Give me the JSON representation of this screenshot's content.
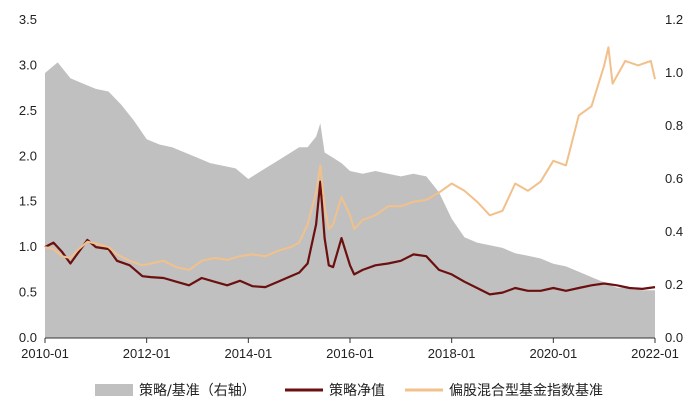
{
  "chart_data": {
    "type": "line",
    "title": "",
    "xlabel": "",
    "ylabel_left": "",
    "ylabel_right": "",
    "x_ticks": [
      "2010-01",
      "2012-01",
      "2014-01",
      "2016-01",
      "2018-01",
      "2020-01",
      "2022-01"
    ],
    "y_left_ticks": [
      "0.0",
      "0.5",
      "1.0",
      "1.5",
      "2.0",
      "2.5",
      "3.0",
      "3.5"
    ],
    "y_right_ticks": [
      "0.0",
      "0.2",
      "0.4",
      "0.6",
      "0.8",
      "1.0",
      "1.2"
    ],
    "y_left_range": [
      0,
      3.5
    ],
    "y_right_range": [
      0,
      1.2
    ],
    "x_range": [
      "2010-01",
      "2022-01"
    ],
    "legend_position": "bottom",
    "grid": false,
    "series": [
      {
        "name": "策略/基准（右轴）",
        "type": "area",
        "axis": "right",
        "color": "#c0c0c0",
        "points": [
          [
            "2010-01",
            1.0
          ],
          [
            "2010-04",
            1.04
          ],
          [
            "2010-07",
            0.98
          ],
          [
            "2010-10",
            0.96
          ],
          [
            "2011-01",
            0.94
          ],
          [
            "2011-04",
            0.93
          ],
          [
            "2011-07",
            0.88
          ],
          [
            "2011-10",
            0.82
          ],
          [
            "2012-01",
            0.75
          ],
          [
            "2012-04",
            0.73
          ],
          [
            "2012-07",
            0.72
          ],
          [
            "2012-10",
            0.7
          ],
          [
            "2013-01",
            0.68
          ],
          [
            "2013-04",
            0.66
          ],
          [
            "2013-07",
            0.65
          ],
          [
            "2013-10",
            0.64
          ],
          [
            "2014-01",
            0.6
          ],
          [
            "2014-04",
            0.63
          ],
          [
            "2014-07",
            0.66
          ],
          [
            "2014-10",
            0.69
          ],
          [
            "2015-01",
            0.72
          ],
          [
            "2015-03",
            0.72
          ],
          [
            "2015-05",
            0.76
          ],
          [
            "2015-06",
            0.81
          ],
          [
            "2015-07",
            0.7
          ],
          [
            "2015-09",
            0.68
          ],
          [
            "2015-11",
            0.66
          ],
          [
            "2016-01",
            0.63
          ],
          [
            "2016-04",
            0.62
          ],
          [
            "2016-07",
            0.63
          ],
          [
            "2016-10",
            0.62
          ],
          [
            "2017-01",
            0.61
          ],
          [
            "2017-04",
            0.62
          ],
          [
            "2017-07",
            0.61
          ],
          [
            "2017-10",
            0.55
          ],
          [
            "2018-01",
            0.45
          ],
          [
            "2018-04",
            0.38
          ],
          [
            "2018-07",
            0.36
          ],
          [
            "2018-10",
            0.35
          ],
          [
            "2019-01",
            0.34
          ],
          [
            "2019-04",
            0.32
          ],
          [
            "2019-07",
            0.31
          ],
          [
            "2019-10",
            0.3
          ],
          [
            "2020-01",
            0.28
          ],
          [
            "2020-04",
            0.27
          ],
          [
            "2020-07",
            0.25
          ],
          [
            "2020-10",
            0.23
          ],
          [
            "2021-01",
            0.21
          ],
          [
            "2021-04",
            0.19
          ],
          [
            "2021-07",
            0.19
          ],
          [
            "2021-10",
            0.18
          ],
          [
            "2022-01",
            0.18
          ]
        ]
      },
      {
        "name": "策略净值",
        "type": "line",
        "axis": "left",
        "color": "#6b0f0f",
        "points": [
          [
            "2010-01",
            1.0
          ],
          [
            "2010-03",
            1.05
          ],
          [
            "2010-05",
            0.95
          ],
          [
            "2010-07",
            0.82
          ],
          [
            "2010-09",
            0.95
          ],
          [
            "2010-11",
            1.08
          ],
          [
            "2011-01",
            1.0
          ],
          [
            "2011-04",
            0.98
          ],
          [
            "2011-06",
            0.85
          ],
          [
            "2011-09",
            0.8
          ],
          [
            "2011-12",
            0.68
          ],
          [
            "2012-02",
            0.67
          ],
          [
            "2012-05",
            0.66
          ],
          [
            "2012-08",
            0.62
          ],
          [
            "2012-11",
            0.58
          ],
          [
            "2013-02",
            0.66
          ],
          [
            "2013-05",
            0.62
          ],
          [
            "2013-08",
            0.58
          ],
          [
            "2013-11",
            0.63
          ],
          [
            "2014-02",
            0.57
          ],
          [
            "2014-05",
            0.56
          ],
          [
            "2014-08",
            0.62
          ],
          [
            "2014-11",
            0.68
          ],
          [
            "2015-01",
            0.72
          ],
          [
            "2015-03",
            0.82
          ],
          [
            "2015-05",
            1.25
          ],
          [
            "2015-06",
            1.72
          ],
          [
            "2015-07",
            1.1
          ],
          [
            "2015-08",
            0.8
          ],
          [
            "2015-09",
            0.78
          ],
          [
            "2015-11",
            1.1
          ],
          [
            "2016-01",
            0.8
          ],
          [
            "2016-02",
            0.7
          ],
          [
            "2016-04",
            0.75
          ],
          [
            "2016-07",
            0.8
          ],
          [
            "2016-10",
            0.82
          ],
          [
            "2017-01",
            0.85
          ],
          [
            "2017-04",
            0.92
          ],
          [
            "2017-07",
            0.9
          ],
          [
            "2017-10",
            0.75
          ],
          [
            "2018-01",
            0.7
          ],
          [
            "2018-04",
            0.62
          ],
          [
            "2018-07",
            0.55
          ],
          [
            "2018-10",
            0.48
          ],
          [
            "2019-01",
            0.5
          ],
          [
            "2019-04",
            0.55
          ],
          [
            "2019-07",
            0.52
          ],
          [
            "2019-10",
            0.52
          ],
          [
            "2020-01",
            0.55
          ],
          [
            "2020-04",
            0.52
          ],
          [
            "2020-07",
            0.55
          ],
          [
            "2020-10",
            0.58
          ],
          [
            "2021-01",
            0.6
          ],
          [
            "2021-04",
            0.58
          ],
          [
            "2021-07",
            0.55
          ],
          [
            "2021-10",
            0.54
          ],
          [
            "2022-01",
            0.56
          ]
        ]
      },
      {
        "name": "偏股混合型基金指数基准",
        "type": "line",
        "axis": "left",
        "color": "#f2c08b",
        "points": [
          [
            "2010-01",
            1.0
          ],
          [
            "2010-03",
            0.98
          ],
          [
            "2010-05",
            0.9
          ],
          [
            "2010-07",
            0.88
          ],
          [
            "2010-09",
            0.98
          ],
          [
            "2010-11",
            1.06
          ],
          [
            "2011-01",
            1.04
          ],
          [
            "2011-04",
            1.0
          ],
          [
            "2011-06",
            0.92
          ],
          [
            "2011-09",
            0.85
          ],
          [
            "2011-12",
            0.8
          ],
          [
            "2012-02",
            0.82
          ],
          [
            "2012-05",
            0.85
          ],
          [
            "2012-08",
            0.78
          ],
          [
            "2012-11",
            0.75
          ],
          [
            "2013-02",
            0.85
          ],
          [
            "2013-05",
            0.88
          ],
          [
            "2013-08",
            0.86
          ],
          [
            "2013-11",
            0.9
          ],
          [
            "2014-02",
            0.92
          ],
          [
            "2014-05",
            0.9
          ],
          [
            "2014-08",
            0.96
          ],
          [
            "2014-11",
            1.0
          ],
          [
            "2015-01",
            1.05
          ],
          [
            "2015-03",
            1.25
          ],
          [
            "2015-05",
            1.6
          ],
          [
            "2015-06",
            1.9
          ],
          [
            "2015-07",
            1.45
          ],
          [
            "2015-08",
            1.2
          ],
          [
            "2015-09",
            1.25
          ],
          [
            "2015-11",
            1.55
          ],
          [
            "2016-01",
            1.35
          ],
          [
            "2016-02",
            1.2
          ],
          [
            "2016-04",
            1.3
          ],
          [
            "2016-07",
            1.35
          ],
          [
            "2016-10",
            1.45
          ],
          [
            "2017-01",
            1.45
          ],
          [
            "2017-04",
            1.5
          ],
          [
            "2017-07",
            1.52
          ],
          [
            "2017-10",
            1.6
          ],
          [
            "2018-01",
            1.7
          ],
          [
            "2018-04",
            1.62
          ],
          [
            "2018-07",
            1.5
          ],
          [
            "2018-10",
            1.35
          ],
          [
            "2019-01",
            1.4
          ],
          [
            "2019-04",
            1.7
          ],
          [
            "2019-07",
            1.62
          ],
          [
            "2019-10",
            1.72
          ],
          [
            "2020-01",
            1.95
          ],
          [
            "2020-04",
            1.9
          ],
          [
            "2020-07",
            2.45
          ],
          [
            "2020-10",
            2.55
          ],
          [
            "2021-01",
            3.0
          ],
          [
            "2021-02",
            3.2
          ],
          [
            "2021-03",
            2.8
          ],
          [
            "2021-06",
            3.05
          ],
          [
            "2021-09",
            3.0
          ],
          [
            "2021-12",
            3.05
          ],
          [
            "2022-01",
            2.85
          ]
        ]
      }
    ]
  },
  "legend": {
    "items": [
      {
        "label": "策略/基准（右轴）",
        "kind": "swatch",
        "color": "#c0c0c0"
      },
      {
        "label": "策略净值",
        "kind": "line",
        "color": "#6b0f0f"
      },
      {
        "label": "偏股混合型基金指数基准",
        "kind": "line",
        "color": "#f2c08b"
      }
    ]
  }
}
